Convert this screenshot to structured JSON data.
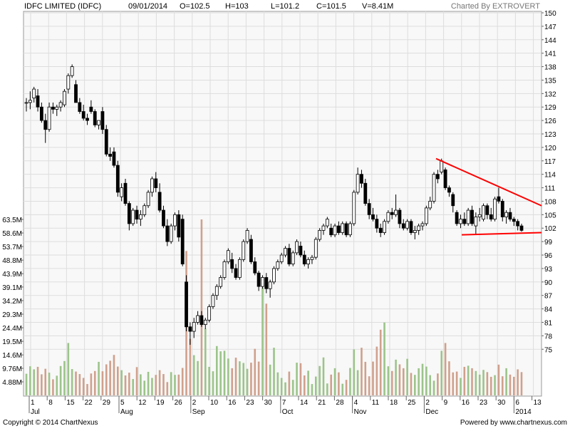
{
  "header": {
    "title": "IDFC LIMITED (IDFC)",
    "date": "09/01/2014",
    "open": "O=102.5",
    "high": "H=103",
    "low": "L=101.2",
    "close": "C=101.5",
    "volume": "V=8.41M",
    "brand": "Charted By EXTROVERT"
  },
  "footer": {
    "copyright": "Copyright © 2014 ChartNexus",
    "powered": "Powered by www.chartnexus.com"
  },
  "colors": {
    "up_candle": "#ffffff",
    "down_candle": "#000000",
    "volume_up": "#9cc48a",
    "volume_down": "#d0a08c",
    "trendline": "#ff0000",
    "grid": "#dddddd",
    "plot_bg": "#f8f8f8"
  },
  "chart_data": {
    "type": "candlestick",
    "title": "IDFC LIMITED (IDFC)",
    "price_axis": {
      "ticks": [
        75,
        78,
        81,
        84,
        87,
        90,
        93,
        96,
        99,
        102,
        105,
        108,
        111,
        114,
        117,
        120,
        123,
        126,
        129,
        132,
        135,
        138,
        141,
        144,
        147,
        150
      ],
      "range": [
        72,
        150
      ]
    },
    "volume_axis": {
      "ticks": [
        "4.88M",
        "9.76M",
        "14.6M",
        "19.5M",
        "24.4M",
        "29.3M",
        "34.2M",
        "39.1M",
        "43.9M",
        "48.8M",
        "53.7M",
        "58.6M",
        "63.5M"
      ],
      "tick_values": [
        4.88,
        9.76,
        14.6,
        19.5,
        24.4,
        29.3,
        34.2,
        39.1,
        43.9,
        48.8,
        53.7,
        58.6,
        63.5
      ],
      "unit": "M"
    },
    "x_axis": {
      "days": [
        "1",
        "8",
        "15",
        "22",
        "29",
        "5",
        "12",
        "19",
        "26",
        "2",
        "10",
        "16",
        "23",
        "30",
        "7",
        "14",
        "21",
        "28",
        "4",
        "11",
        "18",
        "25",
        "2",
        "9",
        "16",
        "23",
        "30",
        "6",
        "13"
      ],
      "months": [
        "Jul",
        "Aug",
        "Sep",
        "Oct",
        "Nov",
        "Dec",
        "2014"
      ]
    },
    "candles": [
      [
        130.0,
        131.0,
        128.0,
        130.0
      ],
      [
        130.0,
        132.5,
        128.5,
        130.5
      ],
      [
        131.0,
        133.5,
        130.0,
        133.0
      ],
      [
        131.5,
        133.0,
        128.0,
        129.0
      ],
      [
        129.0,
        130.0,
        125.5,
        126.0
      ],
      [
        126.0,
        127.5,
        121.0,
        124.0
      ],
      [
        124.0,
        130.0,
        123.5,
        129.0
      ],
      [
        129.0,
        130.0,
        127.5,
        128.5
      ],
      [
        128.5,
        129.5,
        127.0,
        129.0
      ],
      [
        129.0,
        130.5,
        128.0,
        130.0
      ],
      [
        129.5,
        133.0,
        129.0,
        132.5
      ],
      [
        133.0,
        136.5,
        132.0,
        136.0
      ],
      [
        136.0,
        138.5,
        135.5,
        138.0
      ],
      [
        134.0,
        135.0,
        130.0,
        130.0
      ],
      [
        130.0,
        131.0,
        127.5,
        128.0
      ],
      [
        128.0,
        129.5,
        126.0,
        126.5
      ],
      [
        126.5,
        127.5,
        125.0,
        126.0
      ],
      [
        129.0,
        130.5,
        127.5,
        128.0
      ],
      [
        128.0,
        128.5,
        124.5,
        125.0
      ],
      [
        125.0,
        126.0,
        124.0,
        126.0
      ],
      [
        128.0,
        129.0,
        123.0,
        124.0
      ],
      [
        124.0,
        125.0,
        118.0,
        118.5
      ],
      [
        118.5,
        120.0,
        117.0,
        118.0
      ],
      [
        119.0,
        120.0,
        115.5,
        116.0
      ],
      [
        116.0,
        117.0,
        109.0,
        110.0
      ],
      [
        109.0,
        112.0,
        108.0,
        111.0
      ],
      [
        112.0,
        113.0,
        107.0,
        107.5
      ],
      [
        107.5,
        108.0,
        101.5,
        103.0
      ],
      [
        103.0,
        106.5,
        102.5,
        106.0
      ],
      [
        106.0,
        107.0,
        103.0,
        104.0
      ],
      [
        104.0,
        106.0,
        102.5,
        105.0
      ],
      [
        105.0,
        107.5,
        104.5,
        107.0
      ],
      [
        107.0,
        110.5,
        106.5,
        110.0
      ],
      [
        110.0,
        113.5,
        109.0,
        113.0
      ],
      [
        113.0,
        114.5,
        110.0,
        111.0
      ],
      [
        110.0,
        112.0,
        105.5,
        106.0
      ],
      [
        106.0,
        107.0,
        102.0,
        102.5
      ],
      [
        102.5,
        104.0,
        98.0,
        99.0
      ],
      [
        99.0,
        103.0,
        98.5,
        102.5
      ],
      [
        102.5,
        105.5,
        101.5,
        105.0
      ],
      [
        105.0,
        106.0,
        99.0,
        100.0
      ],
      [
        104.0,
        105.0,
        93.5,
        94.0
      ],
      [
        90.0,
        91.5,
        79.0,
        80.0
      ],
      [
        80.0,
        81.0,
        76.0,
        79.0
      ],
      [
        79.0,
        82.0,
        77.5,
        81.0
      ],
      [
        81.0,
        83.5,
        80.5,
        82.5
      ],
      [
        82.5,
        83.5,
        80.0,
        80.5
      ],
      [
        80.5,
        82.0,
        79.5,
        81.5
      ],
      [
        81.5,
        85.0,
        81.0,
        84.5
      ],
      [
        84.5,
        87.5,
        84.0,
        87.0
      ],
      [
        87.0,
        89.5,
        86.0,
        89.0
      ],
      [
        89.0,
        91.5,
        88.5,
        91.0
      ],
      [
        91.0,
        95.0,
        90.5,
        94.5
      ],
      [
        94.5,
        97.5,
        94.0,
        97.0
      ],
      [
        95.0,
        96.5,
        92.0,
        93.0
      ],
      [
        93.0,
        94.0,
        90.5,
        91.0
      ],
      [
        91.0,
        95.5,
        90.5,
        95.0
      ],
      [
        95.0,
        99.5,
        94.5,
        99.0
      ],
      [
        99.0,
        102.0,
        98.5,
        101.5
      ],
      [
        99.5,
        100.5,
        94.0,
        94.5
      ],
      [
        94.5,
        95.5,
        91.5,
        92.0
      ],
      [
        92.0,
        92.5,
        88.0,
        89.0
      ],
      [
        89.0,
        91.5,
        88.5,
        91.0
      ],
      [
        91.0,
        92.0,
        87.5,
        88.5
      ],
      [
        88.5,
        90.5,
        86.5,
        90.0
      ],
      [
        90.0,
        93.5,
        89.5,
        93.0
      ],
      [
        93.0,
        95.0,
        92.5,
        94.5
      ],
      [
        94.5,
        96.5,
        94.0,
        96.0
      ],
      [
        96.0,
        98.0,
        95.5,
        97.5
      ],
      [
        97.5,
        98.5,
        93.5,
        94.0
      ],
      [
        94.0,
        97.0,
        93.5,
        96.5
      ],
      [
        96.5,
        99.5,
        96.0,
        99.0
      ],
      [
        98.0,
        99.0,
        95.5,
        96.0
      ],
      [
        96.0,
        97.0,
        93.5,
        94.0
      ],
      [
        94.0,
        95.5,
        93.0,
        95.0
      ],
      [
        95.0,
        96.0,
        94.0,
        95.5
      ],
      [
        95.5,
        100.0,
        95.0,
        99.5
      ],
      [
        99.5,
        102.0,
        99.0,
        101.5
      ],
      [
        101.5,
        103.0,
        100.5,
        102.5
      ],
      [
        102.5,
        104.5,
        102.0,
        104.0
      ],
      [
        102.0,
        103.0,
        100.0,
        100.5
      ],
      [
        100.5,
        103.0,
        100.0,
        102.5
      ],
      [
        102.5,
        103.5,
        100.5,
        101.0
      ],
      [
        101.0,
        103.5,
        100.5,
        103.0
      ],
      [
        103.0,
        103.5,
        100.0,
        100.5
      ],
      [
        100.5,
        103.5,
        100.0,
        103.0
      ],
      [
        103.0,
        110.5,
        102.5,
        110.0
      ],
      [
        110.0,
        115.5,
        109.5,
        114.0
      ],
      [
        114.0,
        115.0,
        111.0,
        112.0
      ],
      [
        112.0,
        113.0,
        107.0,
        107.5
      ],
      [
        107.5,
        108.5,
        104.0,
        105.0
      ],
      [
        105.0,
        106.5,
        103.5,
        104.0
      ],
      [
        104.0,
        105.0,
        101.0,
        102.0
      ],
      [
        102.0,
        103.0,
        100.0,
        101.0
      ],
      [
        101.0,
        104.0,
        100.5,
        103.5
      ],
      [
        103.5,
        106.0,
        103.0,
        105.5
      ],
      [
        105.5,
        106.5,
        104.0,
        105.0
      ],
      [
        105.0,
        109.5,
        104.5,
        106.0
      ],
      [
        106.0,
        106.5,
        102.0,
        103.0
      ],
      [
        103.0,
        104.0,
        101.5,
        102.0
      ],
      [
        102.0,
        104.0,
        101.5,
        103.5
      ],
      [
        103.5,
        104.0,
        100.5,
        101.0
      ],
      [
        101.0,
        102.5,
        99.5,
        101.5
      ],
      [
        101.5,
        103.0,
        100.5,
        102.5
      ],
      [
        102.5,
        103.5,
        101.5,
        103.0
      ],
      [
        103.0,
        107.0,
        102.5,
        106.5
      ],
      [
        106.5,
        109.0,
        106.0,
        108.0
      ],
      [
        108.0,
        114.5,
        107.5,
        114.0
      ],
      [
        114.0,
        115.0,
        112.0,
        113.0
      ],
      [
        114.5,
        117.5,
        114.0,
        117.0
      ],
      [
        115.0,
        115.5,
        110.5,
        111.0
      ],
      [
        111.0,
        111.5,
        109.0,
        110.0
      ],
      [
        109.5,
        110.0,
        105.5,
        107.0
      ],
      [
        105.5,
        106.0,
        102.5,
        103.0
      ],
      [
        103.0,
        105.0,
        102.0,
        104.0
      ],
      [
        104.0,
        105.5,
        102.5,
        103.0
      ],
      [
        103.0,
        106.5,
        102.5,
        106.0
      ],
      [
        106.0,
        107.0,
        102.5,
        103.0
      ],
      [
        102.5,
        105.5,
        100.5,
        104.5
      ],
      [
        104.5,
        106.5,
        103.5,
        105.0
      ],
      [
        104.0,
        107.5,
        103.5,
        107.0
      ],
      [
        107.0,
        107.5,
        104.0,
        105.0
      ],
      [
        105.0,
        106.5,
        103.5,
        104.0
      ],
      [
        104.0,
        109.0,
        103.5,
        108.5
      ],
      [
        109.0,
        111.0,
        107.5,
        108.0
      ],
      [
        108.0,
        108.5,
        103.5,
        104.5
      ],
      [
        104.5,
        106.0,
        103.0,
        105.5
      ],
      [
        105.5,
        106.5,
        103.5,
        104.0
      ],
      [
        104.0,
        104.5,
        102.5,
        103.5
      ],
      [
        103.5,
        104.0,
        101.5,
        102.5
      ],
      [
        102.5,
        103.0,
        101.2,
        101.5
      ]
    ],
    "volumes": [
      7.8,
      10.5,
      9.4,
      10.3,
      7.6,
      9.6,
      8.2,
      5.8,
      7.1,
      10.6,
      12.4,
      18.9,
      9.5,
      8.6,
      7.7,
      6.3,
      4.1,
      7.9,
      8.8,
      12.1,
      8.7,
      11.2,
      12.5,
      14.6,
      10.4,
      9.1,
      7.2,
      8.2,
      5.9,
      10.2,
      7.6,
      5.3,
      8.5,
      6.3,
      7.4,
      9.1,
      7.7,
      4.8,
      8.4,
      7.4,
      7.5,
      9.9,
      52.1,
      20.4,
      14.5,
      12.4,
      63.5,
      24.1,
      10.3,
      8.7,
      17.8,
      15.9,
      16.1,
      13.3,
      9.8,
      13.6,
      12.3,
      11.7,
      9.6,
      11.8,
      16.8,
      12.2,
      38.9,
      33.1,
      11.1,
      17.2,
      8.3,
      6.3,
      4.7,
      8.6,
      5.6,
      11.8,
      11.6,
      7.2,
      8.9,
      4.1,
      6.8,
      10.6,
      13.7,
      4.3,
      7.5,
      9.8,
      8.3,
      4.2,
      5.6,
      9.9,
      16.6,
      9.1,
      17.2,
      12.1,
      6.9,
      12.2,
      17.6,
      23.7,
      26.3,
      10.5,
      8.8,
      12.9,
      11.2,
      9.8,
      13.2,
      8.1,
      7.4,
      9.8,
      11.4,
      10.4,
      7.3,
      5.3,
      7.9,
      16.1,
      18.9,
      12.3,
      8.3,
      8.6,
      6.3,
      10.3,
      10.7,
      9.8,
      8.8,
      7.5,
      9.2,
      8.4,
      6.7,
      7.3,
      11.1,
      6.9,
      9.8,
      7.5,
      6.7,
      9.4,
      8.4
    ],
    "trendlines": [
      {
        "from": [
          "Dec 9",
          117.5
        ],
        "to": [
          "Jan 16",
          107.0
        ]
      },
      {
        "from": [
          "Dec 17",
          100.5
        ],
        "to": [
          "Jan 16",
          101.0
        ]
      }
    ]
  }
}
